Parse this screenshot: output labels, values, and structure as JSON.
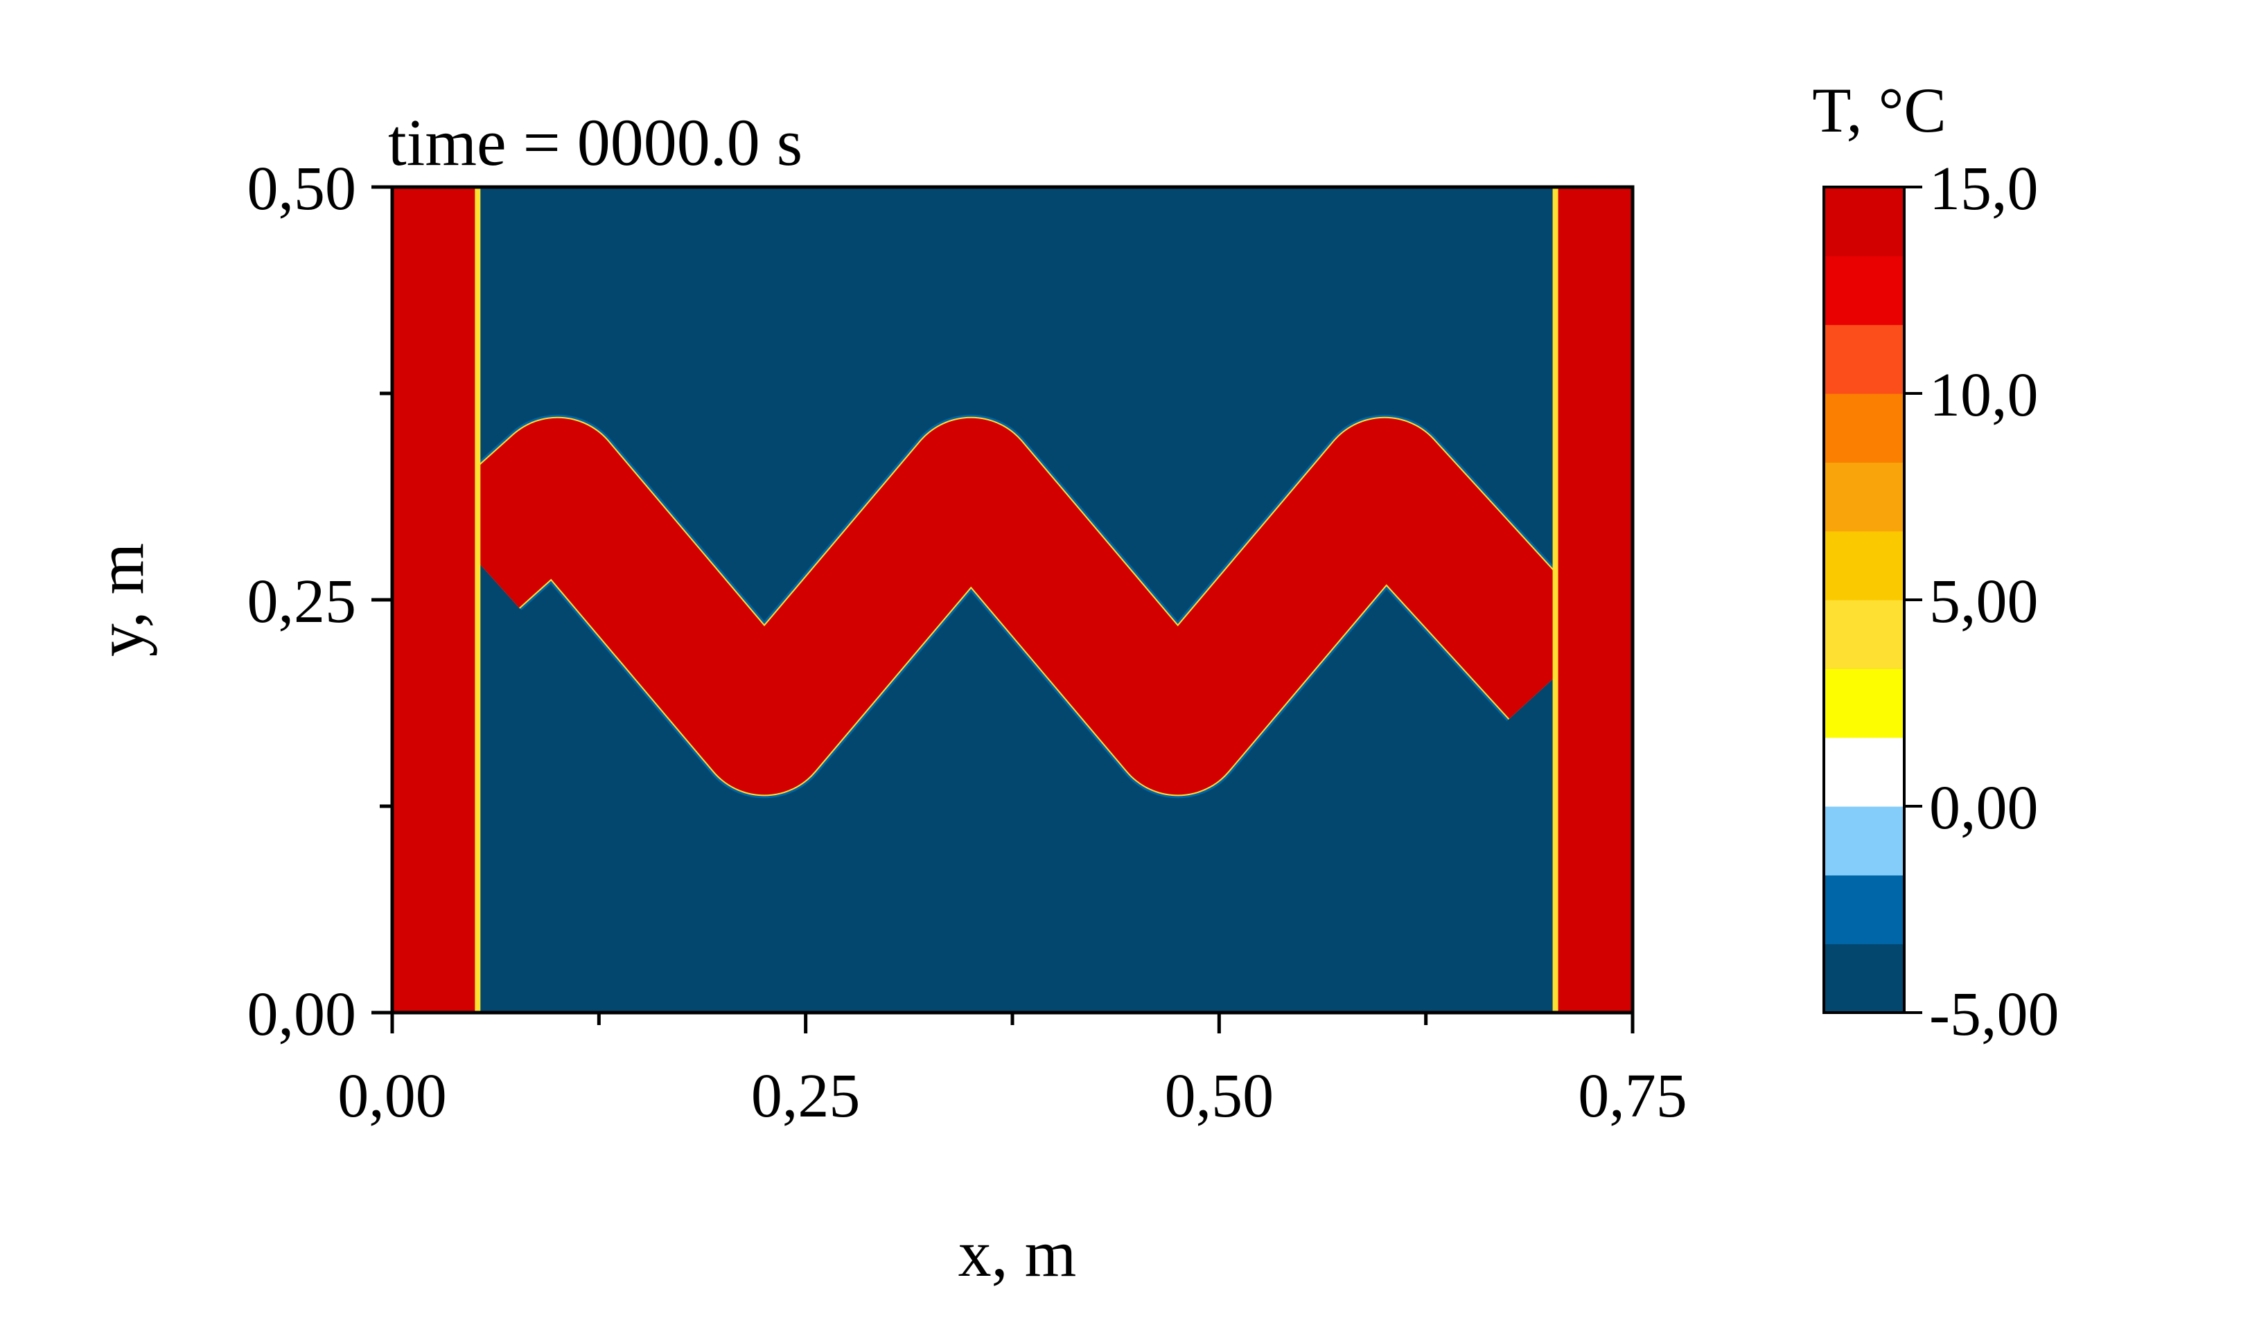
{
  "chart_data": {
    "type": "heatmap",
    "title": "",
    "annotation": "time = 0000.0 s",
    "xlabel": "x, m",
    "ylabel": "y, m",
    "xlim": [
      0,
      0.75
    ],
    "ylim": [
      0,
      0.5
    ],
    "x_ticks": [
      0,
      0.25,
      0.5,
      0.75
    ],
    "x_tick_labels": [
      "0,00",
      "0,25",
      "0,50",
      "0,75"
    ],
    "x_minor_ticks": [
      0.125,
      0.375,
      0.625
    ],
    "y_ticks": [
      0,
      0.25,
      0.5
    ],
    "y_tick_labels": [
      "0,00",
      "0,25",
      "0,50"
    ],
    "y_minor_ticks": [
      0.125,
      0.375
    ],
    "field": {
      "background_T": -5.0,
      "pipe_T": 15.0,
      "left_pipe_x": [
        0.0,
        0.05
      ],
      "right_pipe_x": [
        0.705,
        0.75
      ],
      "serpentine_centerline": [
        [
          0.05,
          0.275
        ],
        [
          0.1,
          0.32
        ],
        [
          0.225,
          0.172
        ],
        [
          0.35,
          0.32
        ],
        [
          0.475,
          0.172
        ],
        [
          0.6,
          0.32
        ],
        [
          0.705,
          0.205
        ]
      ],
      "serpentine_half_thickness": 0.04
    },
    "colorbar": {
      "title": "T, °C",
      "range": [
        -5.0,
        15.0
      ],
      "tick_values": [
        -5.0,
        0.0,
        5.0,
        10.0,
        15.0
      ],
      "tick_labels": [
        "-5,00",
        "0,00",
        "5,00",
        "10,0",
        "15,0"
      ],
      "levels": [
        {
          "from": -5.0,
          "to": -3.333,
          "color": "#03476f"
        },
        {
          "from": -3.333,
          "to": -1.667,
          "color": "#0066a8"
        },
        {
          "from": -1.667,
          "to": 0.0,
          "color": "#84cdfb"
        },
        {
          "from": 0.0,
          "to": 1.667,
          "color": "#ffffff"
        },
        {
          "from": 1.667,
          "to": 3.333,
          "color": "#fdfd00"
        },
        {
          "from": 3.333,
          "to": 5.0,
          "color": "#fde031"
        },
        {
          "from": 5.0,
          "to": 6.667,
          "color": "#fbc900"
        },
        {
          "from": 6.667,
          "to": 8.333,
          "color": "#f9a40a"
        },
        {
          "from": 8.333,
          "to": 10.0,
          "color": "#fb7f00"
        },
        {
          "from": 10.0,
          "to": 11.667,
          "color": "#fb4e1a"
        },
        {
          "from": 11.667,
          "to": 13.333,
          "color": "#e90000"
        },
        {
          "from": 13.333,
          "to": 15.0,
          "color": "#d30000"
        }
      ]
    }
  }
}
